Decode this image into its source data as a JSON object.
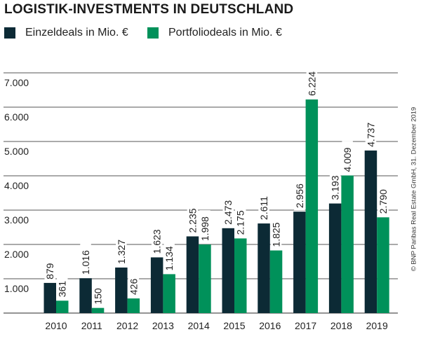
{
  "chart_data": {
    "type": "bar",
    "title": "LOGISTIK-INVESTMENTS IN DEUTSCHLAND",
    "categories": [
      "2010",
      "2011",
      "2012",
      "2013",
      "2014",
      "2015",
      "2016",
      "2017",
      "2018",
      "2019"
    ],
    "series": [
      {
        "name": "Einzeldeals in Mio. €",
        "color": "#0c2a35",
        "values": [
          879,
          1016,
          1327,
          1623,
          2235,
          2473,
          2611,
          2956,
          3193,
          4737
        ],
        "labels": [
          "879",
          "1.016",
          "1.327",
          "1.623",
          "2.235",
          "2.473",
          "2.611",
          "2.956",
          "3.193",
          "4.737"
        ]
      },
      {
        "name": "Portfoliodeals in Mio. €",
        "color": "#00915a",
        "values": [
          361,
          150,
          426,
          1134,
          1998,
          2175,
          1825,
          6224,
          4009,
          2790
        ],
        "labels": [
          "361",
          "150",
          "426",
          "1.134",
          "1.998",
          "2.175",
          "1.825",
          "6.224",
          "4.009",
          "2.790"
        ]
      }
    ],
    "yticks": [
      1000,
      2000,
      3000,
      4000,
      5000,
      6000,
      7000
    ],
    "ytick_labels": [
      "1.000",
      "2.000",
      "3.000",
      "4.000",
      "5.000",
      "6.000",
      "7.000"
    ],
    "ylim": [
      0,
      7000
    ],
    "xlabel": "",
    "ylabel": "",
    "grid": true,
    "legend": "top-left",
    "source": "© BNP Paribas Real Estate GmbH, 31. Dezember 2019"
  }
}
